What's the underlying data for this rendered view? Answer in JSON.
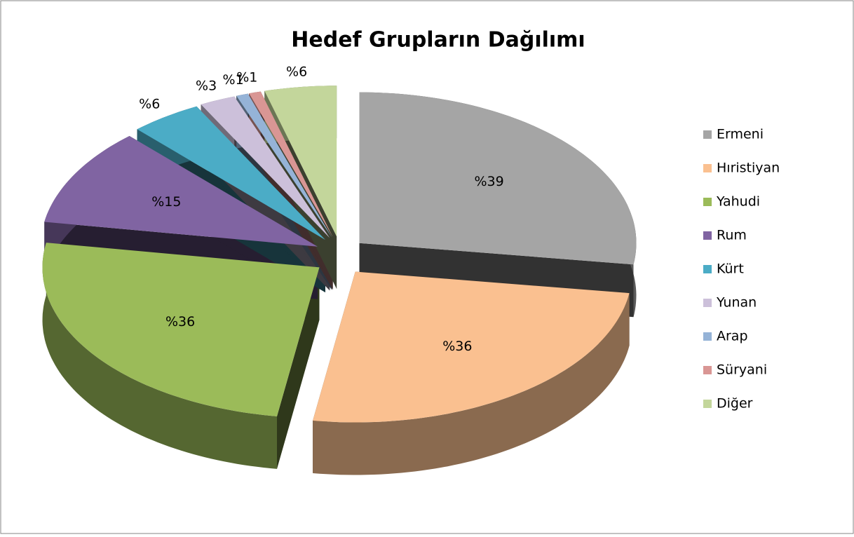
{
  "chart_data": {
    "type": "pie",
    "title": "Hedef Grupların Dağılımı",
    "categories": [
      "Ermeni",
      "Hıristiyan",
      "Yahudi",
      "Rum",
      "Kürt",
      "Yunan",
      "Arap",
      "Süryani",
      "Diğer"
    ],
    "values": [
      39,
      36,
      36,
      15,
      6,
      3,
      1,
      1,
      6
    ],
    "value_labels": [
      "%39",
      "%36",
      "%36",
      "%15",
      "%6",
      "%3",
      "%1",
      "%1",
      "%6"
    ],
    "colors": [
      "#a5a5a5",
      "#fac090",
      "#9bbb59",
      "#8064a2",
      "#4bacc6",
      "#ccc0da",
      "#95b3d7",
      "#d99694",
      "#c3d69b"
    ],
    "legend": "right"
  }
}
